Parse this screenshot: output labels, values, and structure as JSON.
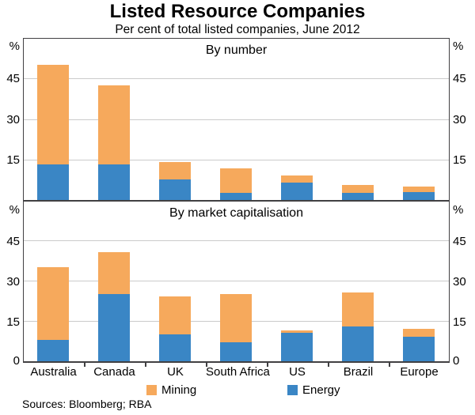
{
  "title": "Listed Resource Companies",
  "subtitle": "Per cent of total listed companies, June 2012",
  "source": "Sources: Bloomberg; RBA",
  "colors": {
    "mining": "#F6A95C",
    "energy": "#3A86C5",
    "grid": "#CBCBCB",
    "axis": "#414042",
    "text": "#000000"
  },
  "legend": {
    "items": [
      {
        "label": "Mining",
        "color_key": "mining"
      },
      {
        "label": "Energy",
        "color_key": "energy"
      }
    ],
    "position": "below"
  },
  "axis": {
    "unit_label": "%",
    "zero_label": "0"
  },
  "chart_data": [
    {
      "type": "bar",
      "stacked": true,
      "title": "By number",
      "categories": [
        "Australia",
        "Canada",
        "UK",
        "South Africa",
        "US",
        "Brazil",
        "Europe"
      ],
      "series": [
        {
          "name": "Energy",
          "values": [
            13,
            13,
            7.5,
            2.5,
            6.5,
            2.5,
            3
          ]
        },
        {
          "name": "Mining",
          "values": [
            36.5,
            29,
            6.5,
            9,
            2.5,
            3,
            2
          ]
        }
      ],
      "totals": [
        49.5,
        42,
        14,
        11.5,
        9,
        5.5,
        5
      ],
      "ylabel": "%",
      "ylim": [
        0,
        60
      ],
      "yticks": [
        15,
        30,
        45
      ],
      "show_zero_label": false,
      "grid": true
    },
    {
      "type": "bar",
      "stacked": true,
      "title": "By market capitalisation",
      "categories": [
        "Australia",
        "Canada",
        "UK",
        "South Africa",
        "US",
        "Brazil",
        "Europe"
      ],
      "series": [
        {
          "name": "Energy",
          "values": [
            8,
            25,
            10,
            7,
            10.5,
            13,
            9
          ]
        },
        {
          "name": "Mining",
          "values": [
            27,
            15.5,
            14,
            18,
            1,
            12.5,
            3
          ]
        }
      ],
      "totals": [
        35,
        40.5,
        24,
        25,
        11.5,
        25.5,
        12
      ],
      "ylabel": "%",
      "ylim": [
        0,
        60
      ],
      "yticks": [
        15,
        30,
        45
      ],
      "show_zero_label": true,
      "grid": true
    }
  ]
}
